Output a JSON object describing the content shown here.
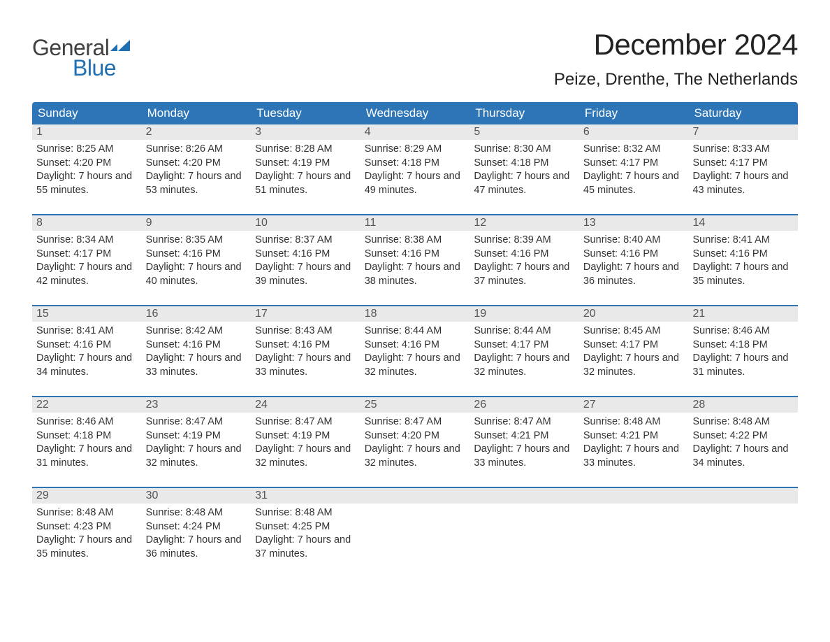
{
  "logo": {
    "text_general": "General",
    "text_blue": "Blue",
    "flag_color": "#1f6fb2"
  },
  "title": "December 2024",
  "location": "Peize, Drenthe, The Netherlands",
  "calendar": {
    "type": "table",
    "background_color": "#ffffff",
    "header_bg": "#2d75b6",
    "header_text_color": "#ffffff",
    "week_divider_color": "#2d75b6",
    "daynum_bg": "#e9e9e9",
    "daynum_color": "#555555",
    "body_text_color": "#333333",
    "header_fontsize": 17,
    "body_fontsize": 14.5,
    "columns": [
      "Sunday",
      "Monday",
      "Tuesday",
      "Wednesday",
      "Thursday",
      "Friday",
      "Saturday"
    ],
    "weeks": [
      [
        {
          "n": "1",
          "sunrise": "8:25 AM",
          "sunset": "4:20 PM",
          "daylight": "7 hours and 55 minutes."
        },
        {
          "n": "2",
          "sunrise": "8:26 AM",
          "sunset": "4:20 PM",
          "daylight": "7 hours and 53 minutes."
        },
        {
          "n": "3",
          "sunrise": "8:28 AM",
          "sunset": "4:19 PM",
          "daylight": "7 hours and 51 minutes."
        },
        {
          "n": "4",
          "sunrise": "8:29 AM",
          "sunset": "4:18 PM",
          "daylight": "7 hours and 49 minutes."
        },
        {
          "n": "5",
          "sunrise": "8:30 AM",
          "sunset": "4:18 PM",
          "daylight": "7 hours and 47 minutes."
        },
        {
          "n": "6",
          "sunrise": "8:32 AM",
          "sunset": "4:17 PM",
          "daylight": "7 hours and 45 minutes."
        },
        {
          "n": "7",
          "sunrise": "8:33 AM",
          "sunset": "4:17 PM",
          "daylight": "7 hours and 43 minutes."
        }
      ],
      [
        {
          "n": "8",
          "sunrise": "8:34 AM",
          "sunset": "4:17 PM",
          "daylight": "7 hours and 42 minutes."
        },
        {
          "n": "9",
          "sunrise": "8:35 AM",
          "sunset": "4:16 PM",
          "daylight": "7 hours and 40 minutes."
        },
        {
          "n": "10",
          "sunrise": "8:37 AM",
          "sunset": "4:16 PM",
          "daylight": "7 hours and 39 minutes."
        },
        {
          "n": "11",
          "sunrise": "8:38 AM",
          "sunset": "4:16 PM",
          "daylight": "7 hours and 38 minutes."
        },
        {
          "n": "12",
          "sunrise": "8:39 AM",
          "sunset": "4:16 PM",
          "daylight": "7 hours and 37 minutes."
        },
        {
          "n": "13",
          "sunrise": "8:40 AM",
          "sunset": "4:16 PM",
          "daylight": "7 hours and 36 minutes."
        },
        {
          "n": "14",
          "sunrise": "8:41 AM",
          "sunset": "4:16 PM",
          "daylight": "7 hours and 35 minutes."
        }
      ],
      [
        {
          "n": "15",
          "sunrise": "8:41 AM",
          "sunset": "4:16 PM",
          "daylight": "7 hours and 34 minutes."
        },
        {
          "n": "16",
          "sunrise": "8:42 AM",
          "sunset": "4:16 PM",
          "daylight": "7 hours and 33 minutes."
        },
        {
          "n": "17",
          "sunrise": "8:43 AM",
          "sunset": "4:16 PM",
          "daylight": "7 hours and 33 minutes."
        },
        {
          "n": "18",
          "sunrise": "8:44 AM",
          "sunset": "4:16 PM",
          "daylight": "7 hours and 32 minutes."
        },
        {
          "n": "19",
          "sunrise": "8:44 AM",
          "sunset": "4:17 PM",
          "daylight": "7 hours and 32 minutes."
        },
        {
          "n": "20",
          "sunrise": "8:45 AM",
          "sunset": "4:17 PM",
          "daylight": "7 hours and 32 minutes."
        },
        {
          "n": "21",
          "sunrise": "8:46 AM",
          "sunset": "4:18 PM",
          "daylight": "7 hours and 31 minutes."
        }
      ],
      [
        {
          "n": "22",
          "sunrise": "8:46 AM",
          "sunset": "4:18 PM",
          "daylight": "7 hours and 31 minutes."
        },
        {
          "n": "23",
          "sunrise": "8:47 AM",
          "sunset": "4:19 PM",
          "daylight": "7 hours and 32 minutes."
        },
        {
          "n": "24",
          "sunrise": "8:47 AM",
          "sunset": "4:19 PM",
          "daylight": "7 hours and 32 minutes."
        },
        {
          "n": "25",
          "sunrise": "8:47 AM",
          "sunset": "4:20 PM",
          "daylight": "7 hours and 32 minutes."
        },
        {
          "n": "26",
          "sunrise": "8:47 AM",
          "sunset": "4:21 PM",
          "daylight": "7 hours and 33 minutes."
        },
        {
          "n": "27",
          "sunrise": "8:48 AM",
          "sunset": "4:21 PM",
          "daylight": "7 hours and 33 minutes."
        },
        {
          "n": "28",
          "sunrise": "8:48 AM",
          "sunset": "4:22 PM",
          "daylight": "7 hours and 34 minutes."
        }
      ],
      [
        {
          "n": "29",
          "sunrise": "8:48 AM",
          "sunset": "4:23 PM",
          "daylight": "7 hours and 35 minutes."
        },
        {
          "n": "30",
          "sunrise": "8:48 AM",
          "sunset": "4:24 PM",
          "daylight": "7 hours and 36 minutes."
        },
        {
          "n": "31",
          "sunrise": "8:48 AM",
          "sunset": "4:25 PM",
          "daylight": "7 hours and 37 minutes."
        },
        {
          "empty": true
        },
        {
          "empty": true
        },
        {
          "empty": true
        },
        {
          "empty": true
        }
      ]
    ],
    "labels": {
      "sunrise_prefix": "Sunrise: ",
      "sunset_prefix": "Sunset: ",
      "daylight_prefix": "Daylight: "
    }
  }
}
